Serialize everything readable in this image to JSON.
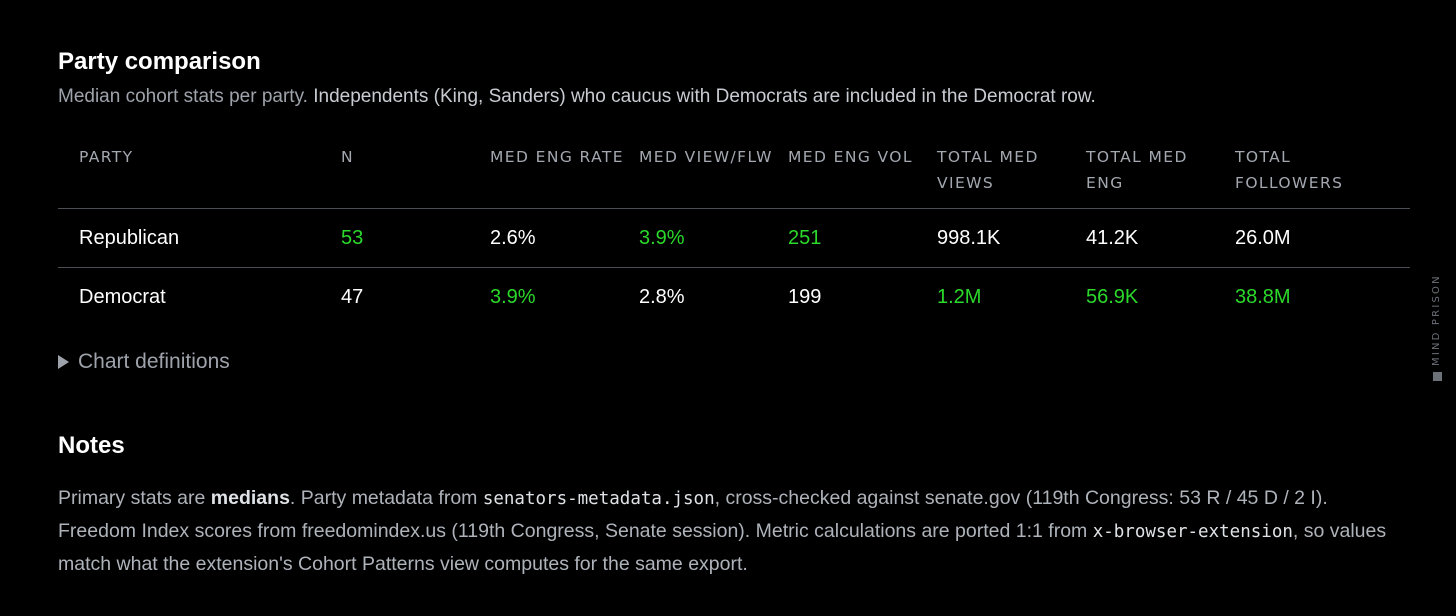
{
  "party_comparison": {
    "title": "Party comparison",
    "subtitle_part1": "Median cohort stats per party. ",
    "subtitle_part2": "Independents (King, Sanders) who caucus with Democrats are included in the Democrat row.",
    "columns": [
      "PARTY",
      "N",
      "MED ENG RATE",
      "MED VIEW/FLW",
      "MED ENG VOL",
      "TOTAL MED VIEWS",
      "TOTAL MED ENG",
      "TOTAL FOLLOWERS"
    ],
    "rows": [
      {
        "party": "Republican",
        "n": "53",
        "med_eng_rate": "2.6%",
        "med_view_flw": "3.9%",
        "med_eng_vol": "251",
        "total_med_views": "998.1K",
        "total_med_eng": "41.2K",
        "total_followers": "26.0M"
      },
      {
        "party": "Democrat",
        "n": "47",
        "med_eng_rate": "3.9%",
        "med_view_flw": "2.8%",
        "med_eng_vol": "199",
        "total_med_views": "1.2M",
        "total_med_eng": "56.9K",
        "total_followers": "38.8M"
      }
    ],
    "details_label": "Chart definitions",
    "highlight_color": "#2bd92b"
  },
  "notes": {
    "title": "Notes",
    "p1": "Primary stats are ",
    "p1_bold": "medians",
    "p2": ". Party metadata from ",
    "code1": "senators-metadata.json",
    "p3": ", cross-checked against senate.gov (119th Congress: 53 R / 45 D / 2 I). Freedom Index scores from freedomindex.us (119th Congress, Senate session). Metric calculations are ported 1:1 from ",
    "code2": "x-browser-extension",
    "p4": ", so values match what the extension's Cohort Patterns view computes for the same export."
  },
  "brand": {
    "text": "MIND PRISON"
  }
}
